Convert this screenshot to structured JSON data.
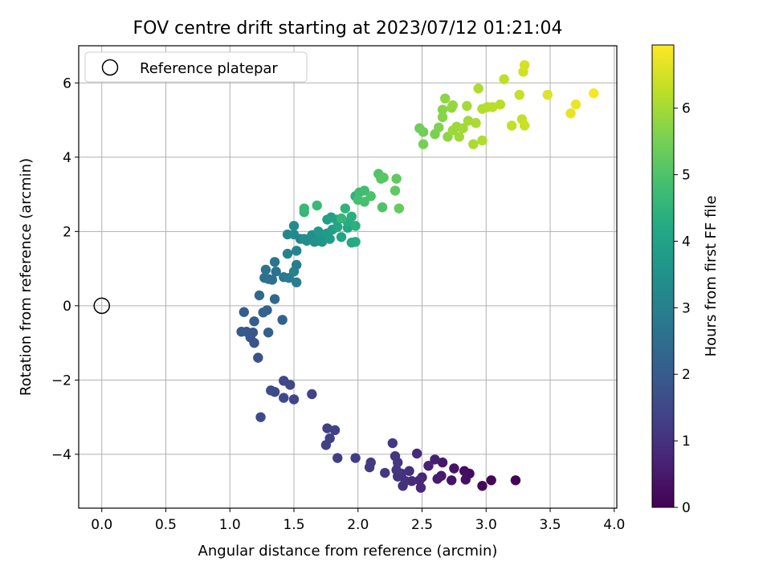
{
  "chart_data": {
    "type": "scatter",
    "title": "FOV centre drift starting at 2023/07/12 01:21:04",
    "xlabel": "Angular distance from reference (arcmin)",
    "ylabel": "Rotation from reference (arcmin)",
    "xlim": [
      -0.18,
      4.02
    ],
    "ylim": [
      -5.45,
      7.0
    ],
    "xticks": [
      0.0,
      0.5,
      1.0,
      1.5,
      2.0,
      2.5,
      3.0,
      3.5,
      4.0
    ],
    "xtick_labels": [
      "0.0",
      "0.5",
      "1.0",
      "1.5",
      "2.0",
      "2.5",
      "3.0",
      "3.5",
      "4.0"
    ],
    "yticks": [
      -4,
      -2,
      0,
      2,
      4,
      6
    ],
    "ytick_labels": [
      "−4",
      "−2",
      "0",
      "2",
      "4",
      "6"
    ],
    "grid": true,
    "legend": {
      "position": "top-left",
      "entries": [
        "Reference platepar"
      ]
    },
    "reference_point": {
      "x": 0.0,
      "y": 0.0
    },
    "colorbar": {
      "label": "Hours from first FF file",
      "colormap": "viridis",
      "range": [
        0,
        6.95
      ],
      "ticks": [
        0,
        1,
        2,
        3,
        4,
        5,
        6
      ],
      "tick_labels": [
        "0",
        "1",
        "2",
        "3",
        "4",
        "5",
        "6"
      ]
    },
    "points": [
      [
        3.23,
        -4.7,
        0.05
      ],
      [
        3.04,
        -4.7,
        0.1
      ],
      [
        2.97,
        -4.85,
        0.15
      ],
      [
        2.87,
        -4.52,
        0.2
      ],
      [
        2.83,
        -4.45,
        0.25
      ],
      [
        2.84,
        -4.68,
        0.3
      ],
      [
        2.75,
        -4.38,
        0.35
      ],
      [
        2.73,
        -4.7,
        0.4
      ],
      [
        2.66,
        -4.22,
        0.45
      ],
      [
        2.65,
        -4.58,
        0.5
      ],
      [
        2.62,
        -4.66,
        0.55
      ],
      [
        2.6,
        -4.14,
        0.6
      ],
      [
        2.55,
        -4.31,
        0.65
      ],
      [
        2.5,
        -4.62,
        0.7
      ],
      [
        2.49,
        -4.9,
        0.75
      ],
      [
        2.48,
        -4.7,
        0.8
      ],
      [
        2.46,
        -3.98,
        0.85
      ],
      [
        2.42,
        -4.72,
        0.9
      ],
      [
        2.4,
        -4.45,
        0.95
      ],
      [
        2.37,
        -4.72,
        1.0
      ],
      [
        2.35,
        -4.85,
        1.0
      ],
      [
        2.34,
        -4.52,
        1.05
      ],
      [
        2.31,
        -4.6,
        1.05
      ],
      [
        2.31,
        -4.22,
        1.1
      ],
      [
        2.3,
        -4.42,
        1.1
      ],
      [
        2.29,
        -4.05,
        1.1
      ],
      [
        2.27,
        -3.7,
        1.15
      ],
      [
        2.21,
        -4.5,
        1.15
      ],
      [
        2.09,
        -4.35,
        1.2
      ],
      [
        2.1,
        -4.22,
        1.2
      ],
      [
        1.98,
        -4.1,
        1.25
      ],
      [
        1.84,
        -4.1,
        1.25
      ],
      [
        1.78,
        -3.57,
        1.3
      ],
      [
        1.75,
        -3.75,
        1.3
      ],
      [
        1.82,
        -3.35,
        1.35
      ],
      [
        1.76,
        -3.3,
        1.35
      ],
      [
        1.64,
        -2.38,
        1.4
      ],
      [
        1.5,
        -2.52,
        1.45
      ],
      [
        1.47,
        -2.13,
        1.5
      ],
      [
        1.42,
        -2.02,
        1.5
      ],
      [
        1.42,
        -2.48,
        1.55
      ],
      [
        1.35,
        -2.32,
        1.55
      ],
      [
        1.32,
        -2.28,
        1.6
      ],
      [
        1.24,
        -3.0,
        1.6
      ],
      [
        1.22,
        -1.4,
        1.7
      ],
      [
        1.19,
        -1.0,
        1.75
      ],
      [
        1.16,
        -0.85,
        1.8
      ],
      [
        1.18,
        -0.72,
        1.85
      ],
      [
        1.13,
        -0.7,
        1.9
      ],
      [
        1.09,
        -0.7,
        1.95
      ],
      [
        1.19,
        -0.42,
        2.0
      ],
      [
        1.11,
        -0.17,
        2.05
      ],
      [
        1.3,
        -0.72,
        2.1
      ],
      [
        1.41,
        -0.38,
        2.15
      ],
      [
        1.29,
        -0.12,
        2.2
      ],
      [
        1.26,
        -0.18,
        2.25
      ],
      [
        1.35,
        0.18,
        2.3
      ],
      [
        1.23,
        0.28,
        2.35
      ],
      [
        1.3,
        0.72,
        2.45
      ],
      [
        1.33,
        0.7,
        2.5
      ],
      [
        1.27,
        0.75,
        2.55
      ],
      [
        1.36,
        0.92,
        2.6
      ],
      [
        1.28,
        0.97,
        2.65
      ],
      [
        1.35,
        1.18,
        2.7
      ],
      [
        1.42,
        0.77,
        2.8
      ],
      [
        1.46,
        0.75,
        2.85
      ],
      [
        1.52,
        1.1,
        2.9
      ],
      [
        1.52,
        0.63,
        2.95
      ],
      [
        1.5,
        0.92,
        3.0
      ],
      [
        1.45,
        1.4,
        3.05
      ],
      [
        1.52,
        1.48,
        3.1
      ],
      [
        1.55,
        1.8,
        3.15
      ],
      [
        1.45,
        1.92,
        3.2
      ],
      [
        1.5,
        1.92,
        3.25
      ],
      [
        1.5,
        2.15,
        3.3
      ],
      [
        1.58,
        1.8,
        3.35
      ],
      [
        1.6,
        1.75,
        3.4
      ],
      [
        1.64,
        1.9,
        3.45
      ],
      [
        1.66,
        1.72,
        3.5
      ],
      [
        1.69,
        1.75,
        3.55
      ],
      [
        1.72,
        1.72,
        3.6
      ],
      [
        1.72,
        1.92,
        3.65
      ],
      [
        1.69,
        2.0,
        3.7
      ],
      [
        1.76,
        1.95,
        3.75
      ],
      [
        1.78,
        1.8,
        3.8
      ],
      [
        1.8,
        2.05,
        3.85
      ],
      [
        1.76,
        2.32,
        3.9
      ],
      [
        1.79,
        2.38,
        3.95
      ],
      [
        1.83,
        2.32,
        4.0
      ],
      [
        1.87,
        1.85,
        4.05
      ],
      [
        1.92,
        2.1,
        4.1
      ],
      [
        1.84,
        2.12,
        4.15
      ],
      [
        1.95,
        1.7,
        4.2
      ],
      [
        1.98,
        1.72,
        4.25
      ],
      [
        1.92,
        2.25,
        4.3
      ],
      [
        1.95,
        2.4,
        4.35
      ],
      [
        1.98,
        2.15,
        4.4
      ],
      [
        1.98,
        2.95,
        4.45
      ],
      [
        1.9,
        2.62,
        4.5
      ],
      [
        1.87,
        2.35,
        4.55
      ],
      [
        1.58,
        2.52,
        4.6
      ],
      [
        1.58,
        2.62,
        4.65
      ],
      [
        1.68,
        2.7,
        4.7
      ],
      [
        2.01,
        3.05,
        4.75
      ],
      [
        2.05,
        3.1,
        4.8
      ],
      [
        2.0,
        2.85,
        4.85
      ],
      [
        2.05,
        2.8,
        4.9
      ],
      [
        2.1,
        2.95,
        4.95
      ],
      [
        2.19,
        2.65,
        5.0
      ],
      [
        2.16,
        3.55,
        5.05
      ],
      [
        2.18,
        3.42,
        5.1
      ],
      [
        2.2,
        3.45,
        5.15
      ],
      [
        2.29,
        3.1,
        5.2
      ],
      [
        2.3,
        3.42,
        5.25
      ],
      [
        2.32,
        2.62,
        5.3
      ],
      [
        2.48,
        4.78,
        5.4
      ],
      [
        2.51,
        4.68,
        5.45
      ],
      [
        2.51,
        4.35,
        5.5
      ],
      [
        2.6,
        4.62,
        5.55
      ],
      [
        2.63,
        4.8,
        5.6
      ],
      [
        2.66,
        5.08,
        5.65
      ],
      [
        2.66,
        5.28,
        5.7
      ],
      [
        2.68,
        5.58,
        5.75
      ],
      [
        2.7,
        4.55,
        5.75
      ],
      [
        2.73,
        5.33,
        5.8
      ],
      [
        2.74,
        5.4,
        5.85
      ],
      [
        2.74,
        4.72,
        5.9
      ],
      [
        2.77,
        4.82,
        5.9
      ],
      [
        2.79,
        4.55,
        5.95
      ],
      [
        2.82,
        4.78,
        5.95
      ],
      [
        2.85,
        5.38,
        6.0
      ],
      [
        2.86,
        4.98,
        6.0
      ],
      [
        2.9,
        4.35,
        6.05
      ],
      [
        2.92,
        4.92,
        6.05
      ],
      [
        2.94,
        5.85,
        6.1
      ],
      [
        2.97,
        4.45,
        6.1
      ],
      [
        2.97,
        5.3,
        6.15
      ],
      [
        3.01,
        5.35,
        6.15
      ],
      [
        3.05,
        5.35,
        6.2
      ],
      [
        3.11,
        5.42,
        6.2
      ],
      [
        3.14,
        6.1,
        6.25
      ],
      [
        3.2,
        4.85,
        6.3
      ],
      [
        3.26,
        5.68,
        6.35
      ],
      [
        3.28,
        5.02,
        6.35
      ],
      [
        3.3,
        4.85,
        6.4
      ],
      [
        3.29,
        6.3,
        6.45
      ],
      [
        3.3,
        6.48,
        6.5
      ],
      [
        3.48,
        5.68,
        6.6
      ],
      [
        3.66,
        5.18,
        6.7
      ],
      [
        3.7,
        5.42,
        6.75
      ],
      [
        3.84,
        5.72,
        6.9
      ]
    ]
  }
}
